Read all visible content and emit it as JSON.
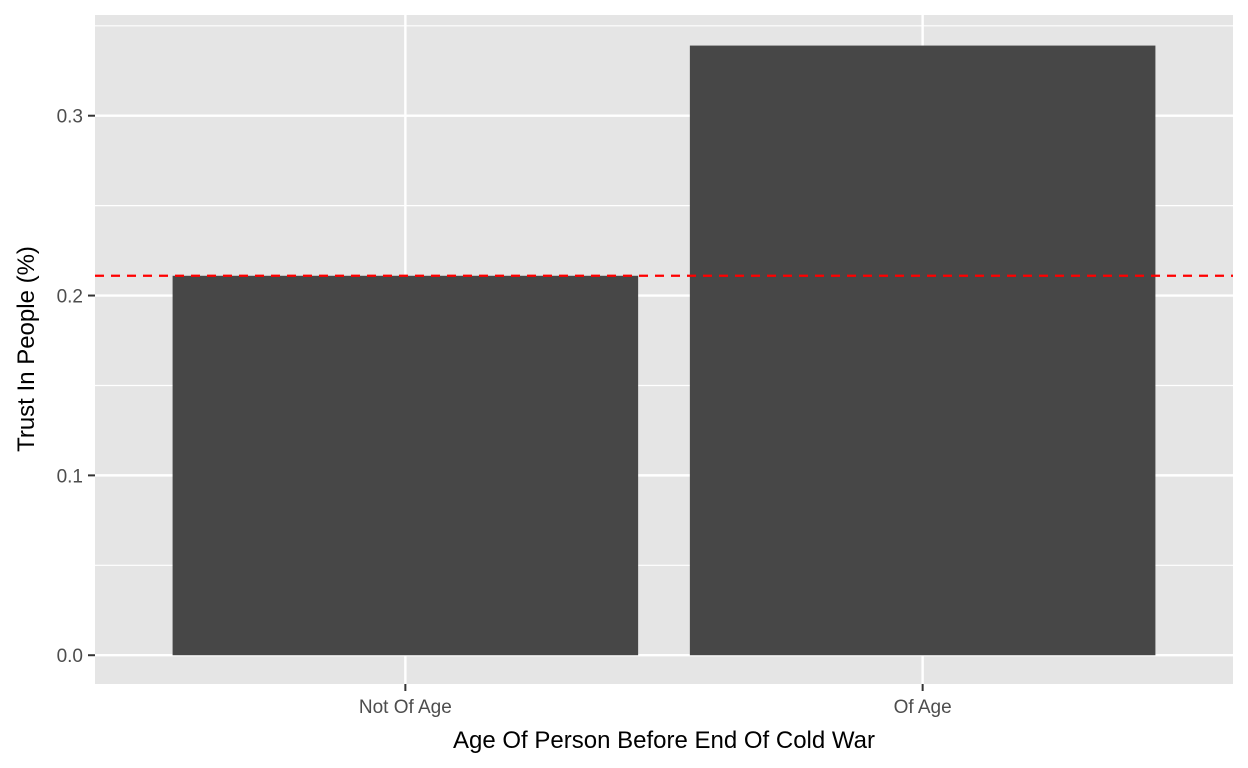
{
  "chart_data": {
    "type": "bar",
    "title": "",
    "xlabel": "Age Of Person Before End Of Cold War",
    "ylabel": "Trust In People (%)",
    "categories": [
      "Not Of Age",
      "Of Age"
    ],
    "values": [
      0.211,
      0.339
    ],
    "ylim": [
      -0.016,
      0.356
    ],
    "yticks": [
      0.0,
      0.1,
      0.2,
      0.3
    ],
    "ytick_labels": [
      "0.0",
      "0.1",
      "0.2",
      "0.3"
    ],
    "reference_line": {
      "y": 0.211,
      "style": "dashed",
      "color": "#ff0000"
    },
    "grid": true,
    "bar_color": "#474747",
    "panel_background": "#e5e5e5"
  }
}
